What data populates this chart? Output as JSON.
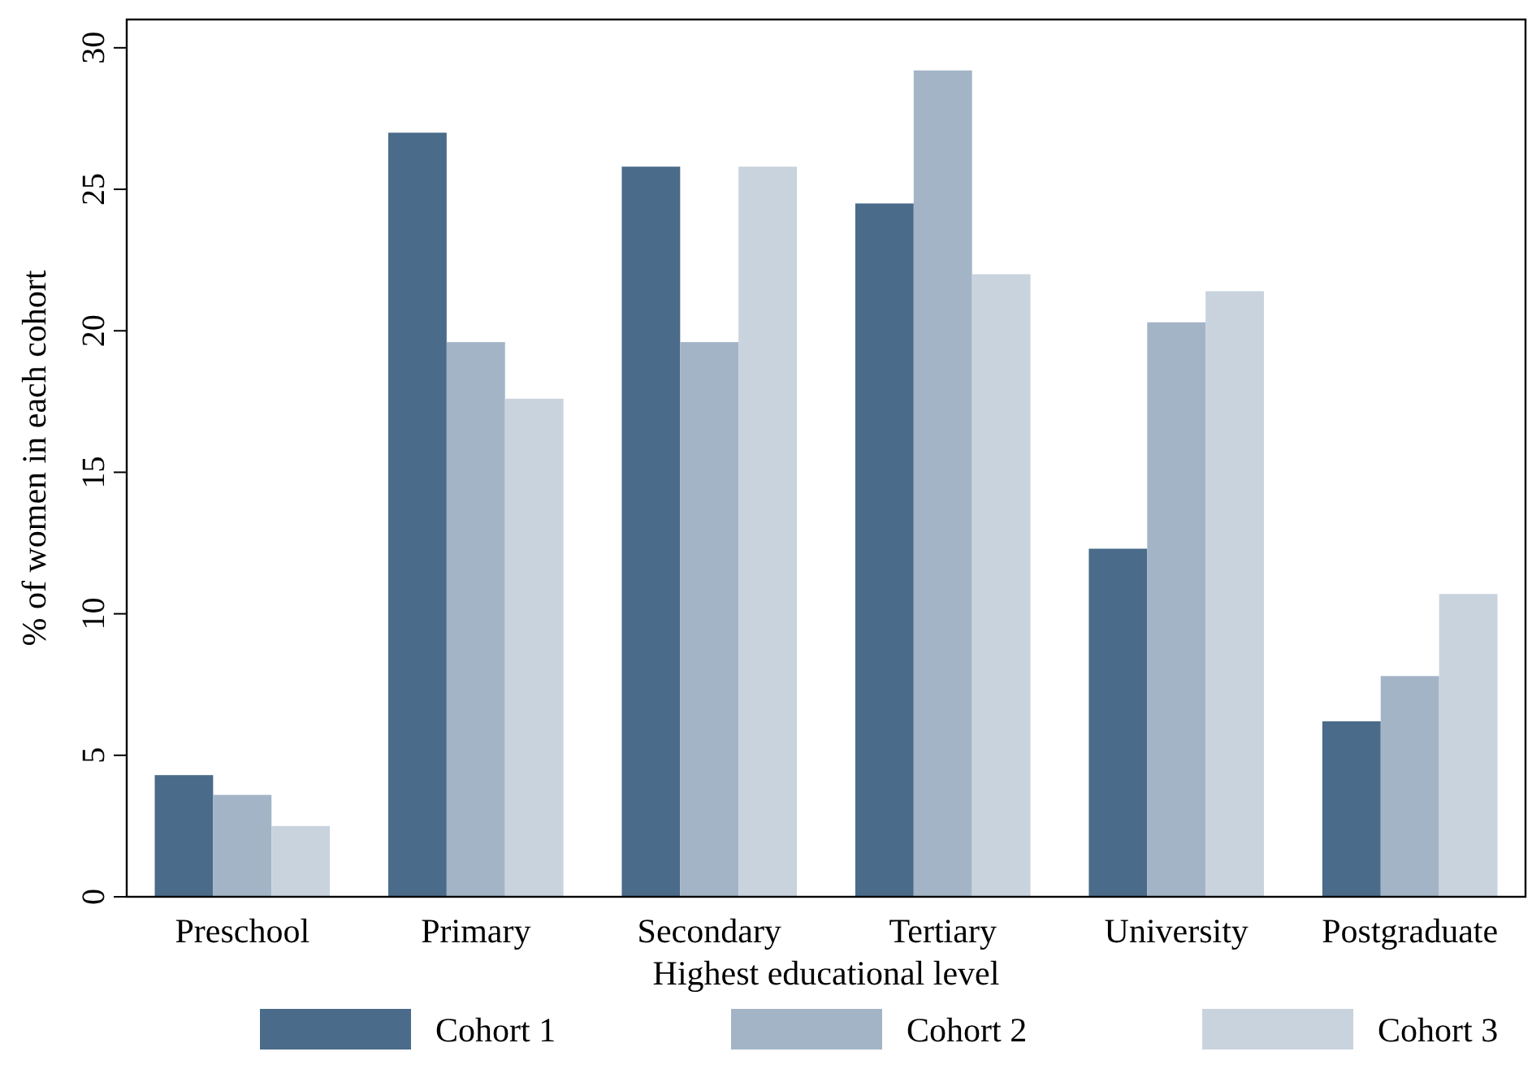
{
  "chart_data": {
    "type": "bar",
    "xlabel": "Highest educational level",
    "ylabel": "% of women in each cohort",
    "categories": [
      "Preschool",
      "Primary",
      "Secondary",
      "Tertiary",
      "University",
      "Postgraduate"
    ],
    "series": [
      {
        "name": "Cohort 1",
        "color": "#4a6b8a",
        "values": [
          4.3,
          27.0,
          25.8,
          24.5,
          12.3,
          6.2
        ]
      },
      {
        "name": "Cohort 2",
        "color": "#a3b4c6",
        "values": [
          3.6,
          19.6,
          19.6,
          29.2,
          20.3,
          7.8
        ]
      },
      {
        "name": "Cohort 3",
        "color": "#c9d3de",
        "values": [
          2.5,
          17.6,
          25.8,
          22.0,
          21.4,
          10.7
        ]
      }
    ],
    "ylim": [
      0,
      31
    ],
    "yticks": [
      0,
      5,
      10,
      15,
      20,
      25,
      30
    ],
    "grid": false,
    "legend": "bottom"
  }
}
